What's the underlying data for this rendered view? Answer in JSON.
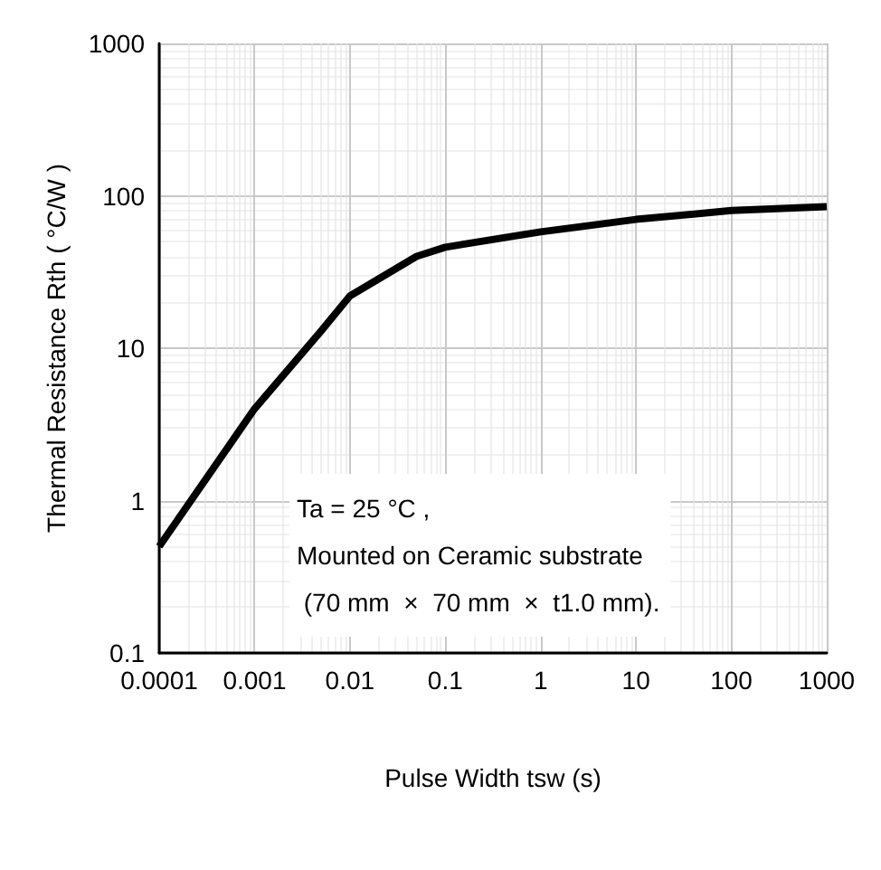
{
  "chart_data": {
    "type": "line",
    "xlabel": "Pulse Width tsw (s)",
    "ylabel": "Thermal Resistance Rth ( °C/W )",
    "log": "xy",
    "xlim": [
      0.0001,
      1000
    ],
    "xticks": [
      0.0001,
      0.001,
      0.01,
      0.1,
      1,
      10,
      100,
      1000
    ],
    "ylim": [
      0.1,
      1000
    ],
    "yticks": [
      0.1,
      1,
      10,
      100,
      1000
    ],
    "grid": true,
    "series": [
      {
        "color": "#000000",
        "x": [
          0.0001,
          0.001,
          0.005,
          0.01,
          0.05,
          0.1,
          1,
          10,
          100,
          1000
        ],
        "values": [
          0.5,
          4,
          13,
          22,
          40,
          46,
          58,
          70,
          80,
          85
        ]
      }
    ],
    "annotations": [
      "Ta = 25 °C ,\nMounted on Ceramic substrate\n (70 mm  ×  70 mm  ×  t1.0 mm)."
    ]
  }
}
